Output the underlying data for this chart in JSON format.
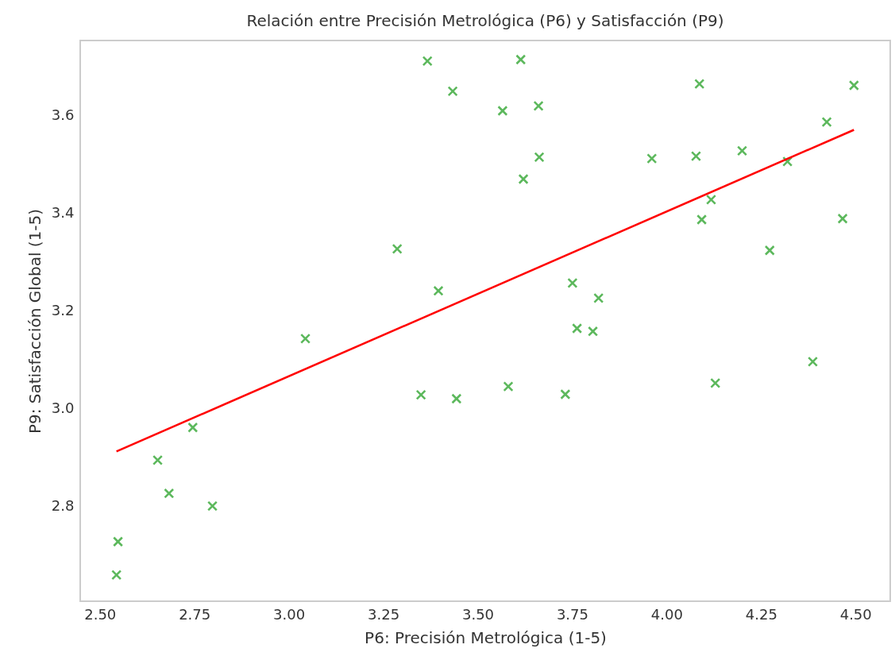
{
  "chart_data": {
    "type": "scatter",
    "title": "Relación entre Precisión Metrológica (P6) y Satisfacción (P9)",
    "xlabel": "P6: Precisión Metrológica (1-5)",
    "ylabel": "P9: Satisfacción Global (1-5)",
    "xlim": [
      2.448,
      4.592
    ],
    "ylim": [
      2.605,
      3.754
    ],
    "xticks": [
      {
        "value": 2.5,
        "label": "2.50"
      },
      2.75,
      {
        "value": 3.0,
        "label": "3.00"
      },
      3.25,
      {
        "value": 3.5,
        "label": "3.50"
      },
      3.75,
      {
        "value": 4.0,
        "label": "4.00"
      },
      4.25,
      {
        "value": 4.5,
        "label": "4.50"
      }
    ],
    "yticks": [
      2.8,
      {
        "value": 3.0,
        "label": "3.0"
      },
      3.2,
      3.4,
      3.6
    ],
    "grid": false,
    "series": [
      {
        "marker": "cross",
        "color": "#5cb85c",
        "x": [
          2.548,
          2.544,
          2.653,
          2.683,
          2.746,
          2.798,
          3.044,
          3.287,
          3.35,
          3.367,
          3.396,
          3.434,
          3.444,
          3.566,
          3.581,
          3.614,
          3.621,
          3.661,
          3.663,
          3.732,
          3.751,
          3.763,
          3.805,
          3.82,
          3.961,
          4.078,
          4.087,
          4.093,
          4.118,
          4.129,
          4.2,
          4.273,
          4.32,
          4.387,
          4.424,
          4.466,
          4.496
        ],
        "values": [
          2.727,
          2.659,
          2.894,
          2.826,
          2.961,
          2.8,
          3.143,
          3.327,
          3.028,
          3.712,
          3.241,
          3.65,
          3.02,
          3.61,
          3.045,
          3.715,
          3.47,
          3.62,
          3.515,
          3.029,
          3.257,
          3.164,
          3.158,
          3.226,
          3.512,
          3.517,
          3.665,
          3.387,
          3.428,
          3.052,
          3.528,
          3.324,
          3.506,
          3.096,
          3.587,
          3.389,
          3.662
        ]
      },
      {
        "type": "line",
        "color": "#ff0000",
        "x": [
          2.544,
          4.496
        ],
        "values": [
          2.912,
          3.571
        ]
      }
    ]
  }
}
